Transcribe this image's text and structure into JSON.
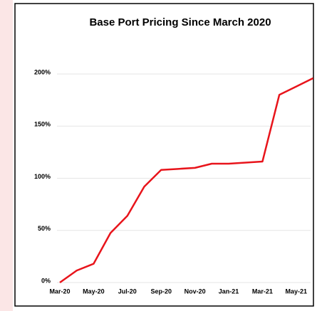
{
  "chart_data": {
    "type": "line",
    "title": "Base Port Pricing Since March 2020",
    "categories": [
      "Mar-20",
      null,
      "May-20",
      null,
      "Jul-20",
      null,
      "Sep-20",
      null,
      "Nov-20",
      null,
      "Jan-21",
      null,
      "Mar-21",
      null,
      "May-21",
      null
    ],
    "series": [
      {
        "name": "Base Port Pricing",
        "color": "#e8141b",
        "values": [
          0,
          11.5,
          18,
          47.5,
          64,
          92,
          108,
          109,
          110,
          114,
          114,
          115,
          116,
          180,
          188,
          196
        ]
      }
    ],
    "ylim": [
      0,
      200
    ],
    "yticks": [
      {
        "value": 0,
        "label": "0%"
      },
      {
        "value": 50,
        "label": "50%"
      },
      {
        "value": 100,
        "label": "100%"
      },
      {
        "value": 150,
        "label": "150%"
      },
      {
        "value": 200,
        "label": "200%"
      }
    ],
    "grid": true
  }
}
